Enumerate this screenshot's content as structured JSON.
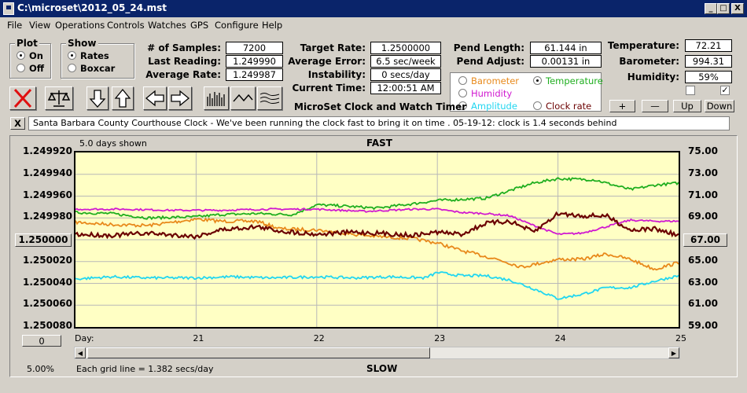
{
  "window": {
    "title": "C:\\microset\\2012_05_24.mst",
    "min": "_",
    "max": "□",
    "close": "X"
  },
  "menu": [
    "File",
    "View",
    "Operations",
    "Controls",
    "Watches",
    "GPS",
    "Configure",
    "Help"
  ],
  "plot_group": {
    "title": "Plot",
    "options": [
      "On",
      "Off"
    ],
    "selected": "On"
  },
  "show_group": {
    "title": "Show",
    "options": [
      "Rates",
      "Boxcar"
    ],
    "selected": "Rates"
  },
  "stats": {
    "samples_label": "# of Samples:",
    "samples": "7200",
    "last_label": "Last Reading:",
    "last": "1.249990",
    "avg_label": "Average Rate:",
    "avg": "1.249987",
    "target_label": "Target Rate:",
    "target": "1.2500000",
    "avgerr_label": "Average Error:",
    "avgerr": "6.5 sec/week",
    "instab_label": "Instability:",
    "instab": "0 secs/day",
    "time_label": "Current Time:",
    "time": "12:00:51 AM",
    "pendlen_label": "Pend Length:",
    "pendlen": "61.144 in",
    "pendadj_label": "Pend Adjust:",
    "pendadj": "0.00131 in",
    "temp_label": "Temperature:",
    "temp": "72.21",
    "baro_label": "Barometer:",
    "baro": "994.31",
    "hum_label": "Humidity:",
    "hum": "59%"
  },
  "app_name": "MicroSet Clock and Watch Timer",
  "series_select": {
    "options": [
      "Barometer",
      "Temperature",
      "Humidity",
      "Clock rate",
      "Amplitude"
    ],
    "selected": "Temperature"
  },
  "aux_buttons": {
    "plus": "+",
    "minus": "—",
    "up": "Up",
    "down": "Down"
  },
  "checkboxes": {
    "left": "",
    "right": "✓"
  },
  "note": {
    "close": "X",
    "text": "Santa Barbara County Courthouse Clock - We've been running the clock fast to bring it on time .   05-19-12: clock is 1.4 seconds behind"
  },
  "graph": {
    "days_shown": "5.0 days shown",
    "fast": "FAST",
    "slow": "SLOW",
    "left_box": "1.250000",
    "right_box": "67.00",
    "bottom_box": "0",
    "percent": "5.00%",
    "grid_info": "Each grid line = 1.382 secs/day",
    "day_label": "Day:"
  },
  "colors": {
    "barometer": "#e8891b",
    "temperature": "#1fae1f",
    "humidity": "#d01ad0",
    "amplitude": "#22d6f0",
    "clock_rate": "#6b0000"
  },
  "chart_data": {
    "type": "line",
    "x_label": "Day:",
    "x_ticks": [
      "21",
      "22",
      "23",
      "24",
      "25"
    ],
    "xlim": [
      20,
      25
    ],
    "y_left_ticks": [
      "1.249920",
      "1.249940",
      "1.249960",
      "1.249980",
      "1.250000",
      "1.250020",
      "1.250040",
      "1.250060",
      "1.250080"
    ],
    "y_left_lim": [
      1.24992,
      1.25008
    ],
    "y_left_inverted": true,
    "y_right_ticks": [
      "75.00",
      "73.00",
      "71.00",
      "69.00",
      "67.00",
      "65.00",
      "63.00",
      "61.00",
      "59.00"
    ],
    "y_right_lim": [
      59,
      75
    ],
    "series": [
      {
        "key": "barometer",
        "x": [
          20,
          20.3,
          20.6,
          21,
          21.2,
          21.5,
          21.7,
          22,
          22.3,
          22.5,
          22.8,
          23,
          23.2,
          23.5,
          23.7,
          24,
          24.2,
          24.4,
          24.6,
          24.8,
          25
        ],
        "y": [
          1.249984,
          1.249986,
          1.249987,
          1.249981,
          1.249983,
          1.249983,
          1.24999,
          1.249991,
          1.249995,
          1.249997,
          1.249999,
          1.250003,
          1.25001,
          1.250018,
          1.250025,
          1.250018,
          1.250018,
          1.250013,
          1.250018,
          1.250027,
          1.250021
        ],
        "noise": 1.5e-06
      },
      {
        "key": "temperature",
        "x": [
          20,
          20.3,
          20.6,
          21,
          21.2,
          21.5,
          21.8,
          22,
          22.2,
          22.5,
          22.8,
          23,
          23.2,
          23.4,
          23.6,
          23.8,
          24,
          24.3,
          24.6,
          24.8,
          25
        ],
        "y": [
          69.5,
          69.4,
          69.0,
          69.1,
          69.3,
          69.4,
          69.3,
          70.2,
          70.1,
          69.9,
          70.3,
          70.6,
          70.7,
          70.8,
          71.5,
          72.2,
          72.6,
          72.5,
          71.6,
          72.0,
          72.2
        ],
        "noise": 0.12
      },
      {
        "key": "humidity",
        "x": [
          20,
          20.4,
          20.8,
          21.2,
          21.6,
          22,
          22.4,
          22.8,
          23,
          23.2,
          23.4,
          23.6,
          23.8,
          24,
          24.2,
          24.4,
          24.6,
          24.8,
          25
        ],
        "y": [
          69.8,
          69.8,
          69.7,
          69.7,
          69.8,
          69.8,
          69.6,
          69.8,
          69.8,
          69.5,
          69.4,
          69.2,
          68.3,
          67.5,
          67.6,
          68.2,
          68.8,
          68.7,
          68.7
        ],
        "noise": 0.08
      },
      {
        "key": "amplitude",
        "x": [
          20,
          20.3,
          20.6,
          21,
          21.3,
          21.6,
          22,
          22.3,
          22.6,
          22.9,
          23,
          23.2,
          23.4,
          23.6,
          23.8,
          24,
          24.2,
          24.4,
          24.6,
          24.8,
          25
        ],
        "y": [
          63.4,
          63.6,
          63.5,
          63.5,
          63.6,
          63.5,
          63.6,
          63.5,
          63.6,
          63.5,
          64.0,
          63.7,
          63.7,
          63.3,
          62.5,
          61.6,
          62.0,
          62.6,
          62.6,
          63.2,
          63.7
        ],
        "noise": 0.12
      },
      {
        "key": "clock_rate",
        "x": [
          20,
          20.3,
          20.6,
          21,
          21.2,
          21.5,
          21.7,
          22,
          22.3,
          22.5,
          22.8,
          23,
          23.2,
          23.4,
          23.6,
          23.8,
          24,
          24.2,
          24.4,
          24.6,
          24.8,
          25
        ],
        "y": [
          1.249995,
          1.249996,
          1.249994,
          1.249997,
          1.249991,
          1.249988,
          1.249992,
          1.249995,
          1.249993,
          1.249994,
          1.249996,
          1.249993,
          1.249995,
          1.249985,
          1.249983,
          1.249993,
          1.249976,
          1.249978,
          1.249978,
          1.249991,
          1.24999,
          1.249996
        ],
        "noise": 2e-06
      }
    ]
  }
}
